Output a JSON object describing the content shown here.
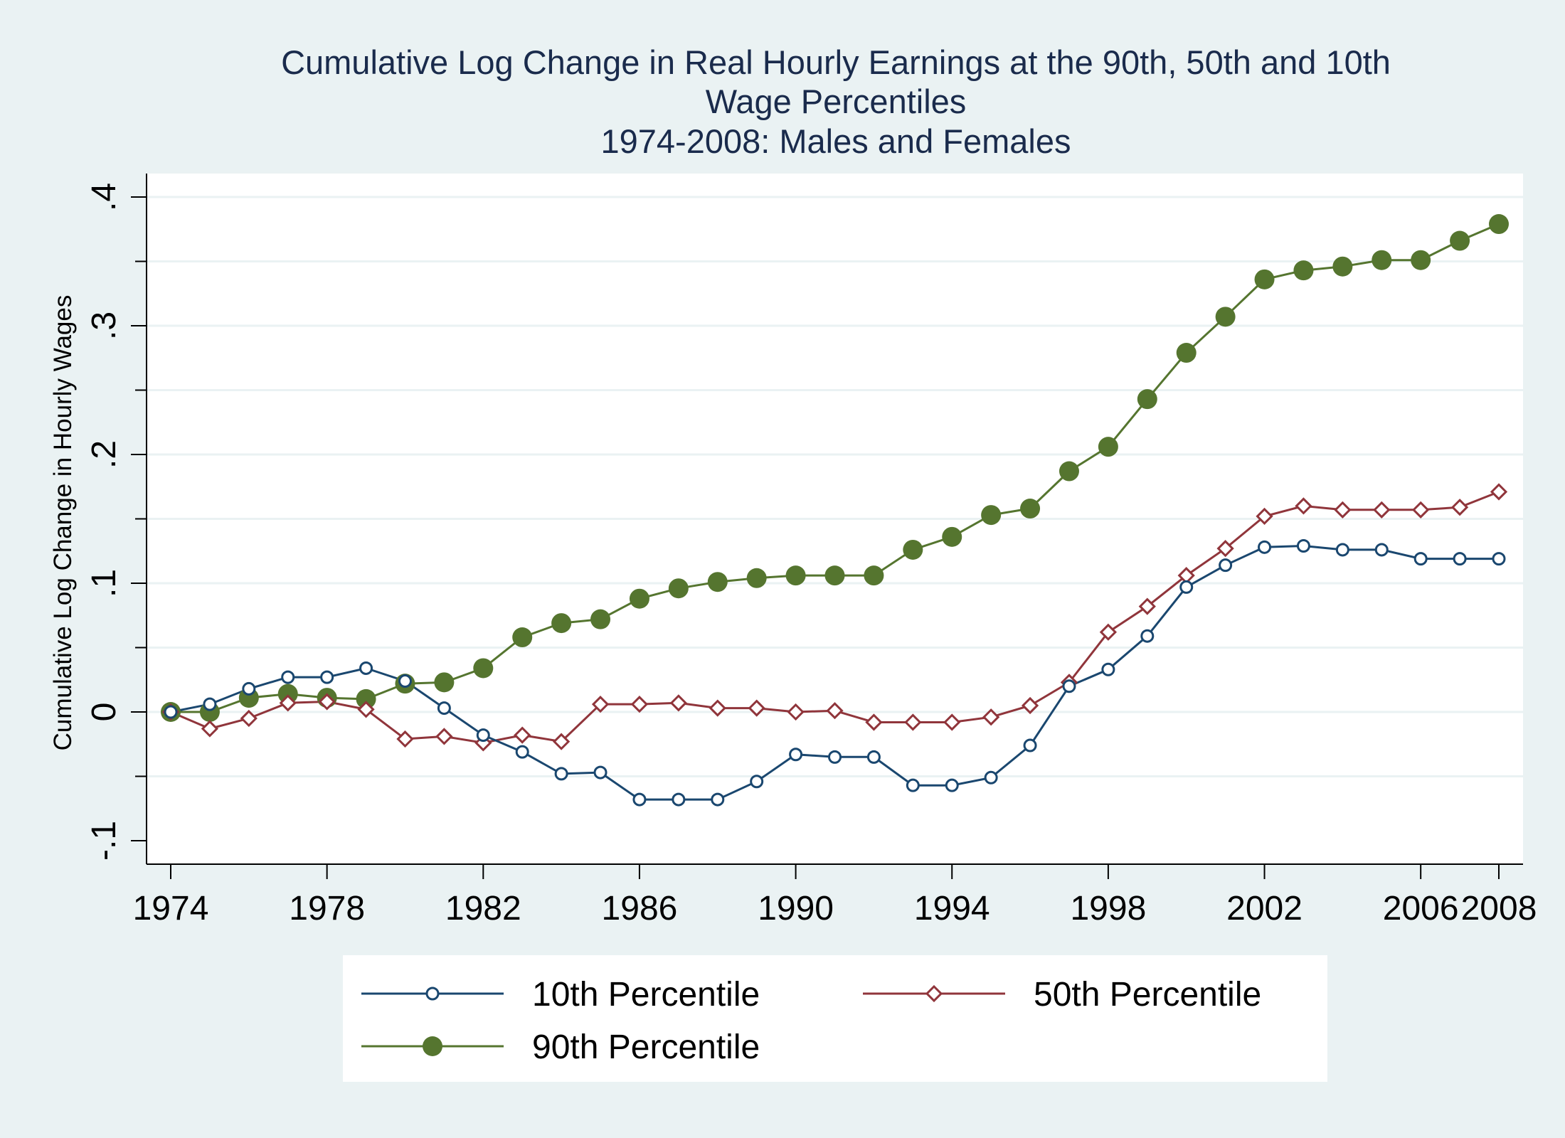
{
  "chart_data": {
    "type": "line",
    "title": [
      "Cumulative Log Change in Real Hourly Earnings at the 90th, 50th and 10th",
      "Wage Percentiles",
      "1974-2008: Males and Females"
    ],
    "ylabel": "Cumulative Log Change in Hourly Wages",
    "xlabel": "",
    "xlim": [
      1974,
      2008
    ],
    "ylim": [
      -0.12,
      0.42
    ],
    "x_ticks": [
      1974,
      1978,
      1982,
      1986,
      1990,
      1994,
      1998,
      2002,
      2006,
      2008
    ],
    "x_tick_labels": [
      "1974",
      "1978",
      "1982",
      "1986",
      "1990",
      "1994",
      "1998",
      "2002",
      "2006",
      "2008"
    ],
    "y_ticks": [
      -0.1,
      0,
      0.1,
      0.2,
      0.3,
      0.4
    ],
    "y_tick_labels": [
      "-.1",
      "0",
      ".1",
      ".2",
      ".3",
      ".4"
    ],
    "y_gridlines": [
      -0.05,
      0,
      0.05,
      0.1,
      0.15,
      0.2,
      0.25,
      0.3,
      0.35,
      0.4
    ],
    "grid": true,
    "legend_position": "bottom",
    "x": [
      1974,
      1975,
      1976,
      1977,
      1978,
      1979,
      1980,
      1981,
      1982,
      1983,
      1984,
      1985,
      1986,
      1987,
      1988,
      1989,
      1990,
      1991,
      1992,
      1993,
      1994,
      1995,
      1996,
      1997,
      1998,
      1999,
      2000,
      2001,
      2002,
      2003,
      2004,
      2005,
      2006,
      2007,
      2008
    ],
    "series": [
      {
        "name": "10th Percentile",
        "color": "#1a476f",
        "marker": "hollow-circle",
        "values": [
          0,
          0.006,
          0.018,
          0.027,
          0.027,
          0.034,
          0.024,
          0.003,
          -0.018,
          -0.031,
          -0.048,
          -0.047,
          -0.068,
          -0.068,
          -0.068,
          -0.054,
          -0.033,
          -0.035,
          -0.035,
          -0.057,
          -0.057,
          -0.051,
          -0.026,
          0.02,
          0.033,
          0.059,
          0.097,
          0.114,
          0.128,
          0.129,
          0.126,
          0.126,
          0.119,
          0.119,
          0.119
        ]
      },
      {
        "name": "50th Percentile",
        "color": "#90353b",
        "marker": "hollow-diamond",
        "values": [
          0,
          -0.013,
          -0.005,
          0.007,
          0.008,
          0.002,
          -0.021,
          -0.019,
          -0.024,
          -0.018,
          -0.023,
          0.006,
          0.006,
          0.007,
          0.003,
          0.003,
          0,
          0.001,
          -0.008,
          -0.008,
          -0.008,
          -0.004,
          0.005,
          0.023,
          0.062,
          0.082,
          0.106,
          0.127,
          0.152,
          0.16,
          0.157,
          0.157,
          0.157,
          0.159,
          0.171
        ]
      },
      {
        "name": "90th Percentile",
        "color": "#55752f",
        "marker": "solid-circle",
        "values": [
          0,
          0,
          0.011,
          0.014,
          0.011,
          0.01,
          0.022,
          0.023,
          0.034,
          0.058,
          0.069,
          0.072,
          0.088,
          0.096,
          0.101,
          0.104,
          0.106,
          0.106,
          0.106,
          0.126,
          0.136,
          0.153,
          0.158,
          0.187,
          0.206,
          0.243,
          0.279,
          0.307,
          0.336,
          0.343,
          0.346,
          0.351,
          0.351,
          0.366,
          0.379
        ]
      }
    ]
  }
}
